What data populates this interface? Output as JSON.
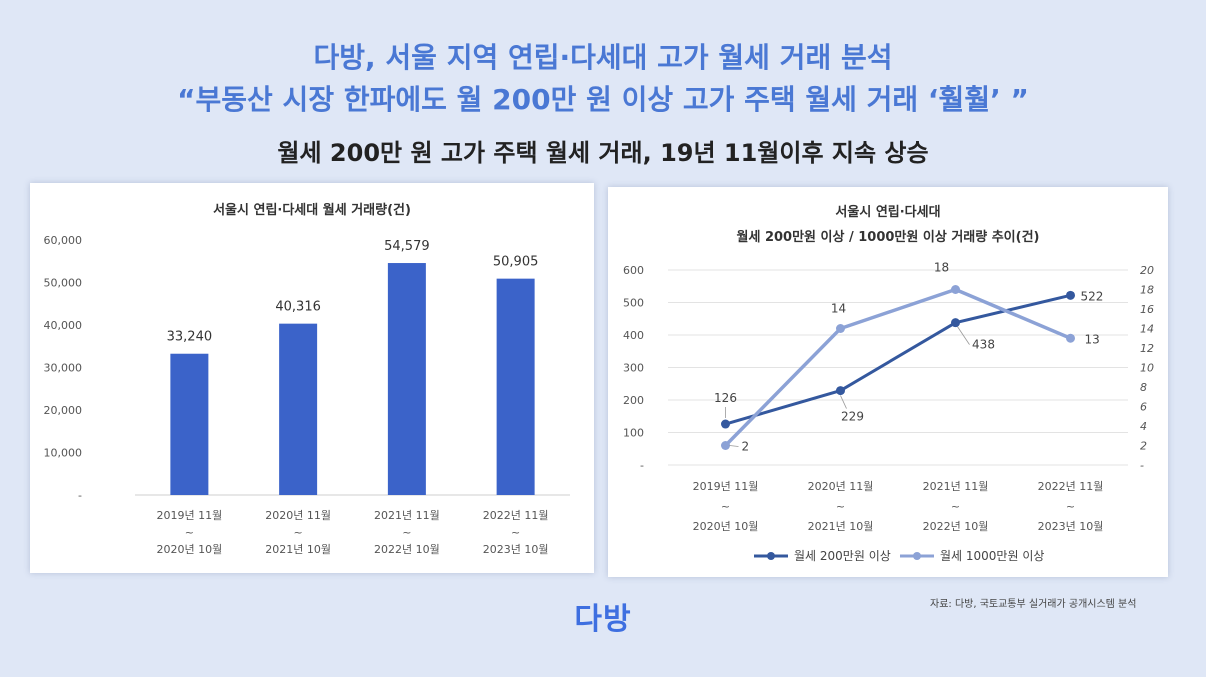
{
  "header": {
    "title_line1": "다방, 서울 지역 연립·다세대 고가 월세 거래 분석",
    "title_line2": "“부동산 시장 한파에도 월 200만 원 이상 고가 주택 월세 거래 ‘훨훨’ ”",
    "subtitle": "월세 200만 원 고가 주택 월세 거래, 19년 11월이후 지속 상승"
  },
  "chart_data": [
    {
      "type": "bar",
      "title": "서울시 연립·다세대 월세 거래량(건)",
      "categories": [
        [
          "2019년 11월",
          "~",
          "2020년 10월"
        ],
        [
          "2020년 11월",
          "~",
          "2021년 10월"
        ],
        [
          "2021년 11월",
          "~",
          "2022년 10월"
        ],
        [
          "2022년 11월",
          "~",
          "2023년 10월"
        ]
      ],
      "values": [
        33240,
        40316,
        54579,
        50905
      ],
      "value_labels": [
        "33,240",
        "40,316",
        "54,579",
        "50,905"
      ],
      "ylim": [
        0,
        60000
      ],
      "yticks": [
        "-",
        "10,000",
        "20,000",
        "30,000",
        "40,000",
        "50,000",
        "60,000"
      ],
      "color": "#3b63c9",
      "grid": false
    },
    {
      "type": "line",
      "title": [
        "서울시 연립·다세대",
        "월세 200만원 이상 / 1000만원 이상 거래량 추이(건)"
      ],
      "categories": [
        [
          "2019년 11월",
          "~",
          "2020년 10월"
        ],
        [
          "2020년 11월",
          "~",
          "2021년 10월"
        ],
        [
          "2021년 11월",
          "~",
          "2022년 10월"
        ],
        [
          "2022년 11월",
          "~",
          "2023년 10월"
        ]
      ],
      "series": [
        {
          "name": "월세 200만원 이상",
          "axis": "left",
          "values": [
            126,
            229,
            438,
            522
          ],
          "color": "#34589e"
        },
        {
          "name": "월세 1000만원 이상",
          "axis": "right",
          "values": [
            2,
            14,
            18,
            13
          ],
          "color": "#8ca2d6"
        }
      ],
      "ylim_left": [
        0,
        600
      ],
      "yticks_left": [
        "-",
        "100",
        "200",
        "300",
        "400",
        "500",
        "600"
      ],
      "ylim_right": [
        0,
        20
      ],
      "yticks_right": [
        "-",
        "2",
        "4",
        "6",
        "8",
        "10",
        "12",
        "14",
        "16",
        "18",
        "20"
      ],
      "legend_position": "bottom",
      "grid": true
    }
  ],
  "footer": {
    "logo": "다방",
    "source": "자료: 다방, 국토교통부 실거래가 공개시스템 분석"
  }
}
